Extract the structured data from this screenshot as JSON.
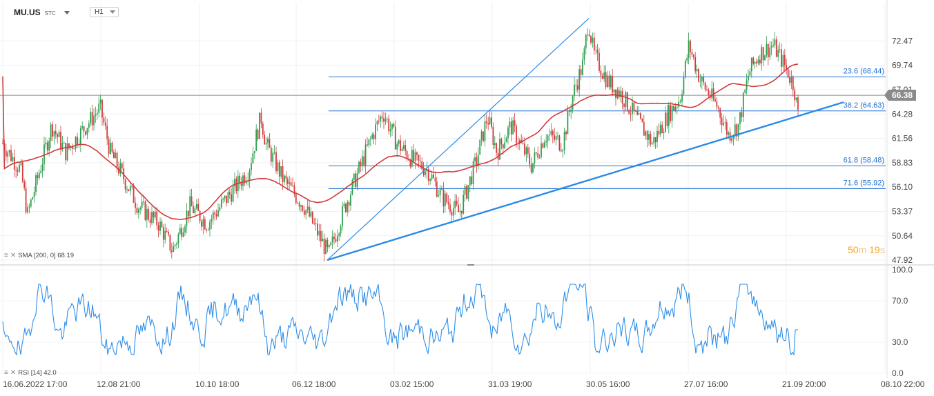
{
  "header": {
    "symbol": "MU.US",
    "exchange": "STC",
    "timeframe": "H1"
  },
  "indicators": {
    "sma_label": "SMA [200, 0] 68.19",
    "rsi_label": "RSI [14] 42.0"
  },
  "countdown": {
    "minutes": "50",
    "min_unit": "m",
    "seconds": "19",
    "sec_unit": "s"
  },
  "last_price": "66.38",
  "colors": {
    "up": "#2e9e4f",
    "down": "#d23b3b",
    "sma": "#d13a3a",
    "fib": "#1f6fd1",
    "trend": "#2a8ae6",
    "rsi": "#2d8ee8",
    "last": "#8a8a8a"
  },
  "chart_data": [
    {
      "type": "candlestick",
      "y_ticks": [
        "72.47",
        "69.74",
        "67.01",
        "64.28",
        "61.56",
        "58.83",
        "56.10",
        "53.37",
        "50.64",
        "47.92"
      ],
      "ylim": [
        47.92,
        75.2
      ],
      "x_ticks": [
        "16.06.2022 17:00",
        "12.08 21:00",
        "10.10 18:00",
        "06.12 18:00",
        "03.02 15:00",
        "31.03 19:00",
        "30.05 16:00",
        "27.07 16:00",
        "21.09 20:00",
        "08.10 22:00"
      ],
      "last_price": 66.38,
      "sma": {
        "period": 200,
        "value": 68.19
      },
      "fibonacci_levels": [
        {
          "label": "23.6 (68.44)",
          "value": 68.44
        },
        {
          "label": "38.2 (64.63)",
          "value": 64.63
        },
        {
          "label": "61.8 (58.48)",
          "value": 58.48
        },
        {
          "label": "71.6 (55.92)",
          "value": 55.92
        }
      ],
      "anchor_points": [
        {
          "x": "06.12",
          "y": 47.92
        },
        {
          "x": "30.05",
          "y": 75.0
        },
        {
          "x": "21.09",
          "y": 64.0
        }
      ]
    },
    {
      "type": "line",
      "name": "RSI",
      "period": 14,
      "last_value": 42.0,
      "y_ticks": [
        "100.0",
        "70.0",
        "30.0",
        "0.0"
      ],
      "ylim": [
        0,
        100
      ]
    }
  ]
}
